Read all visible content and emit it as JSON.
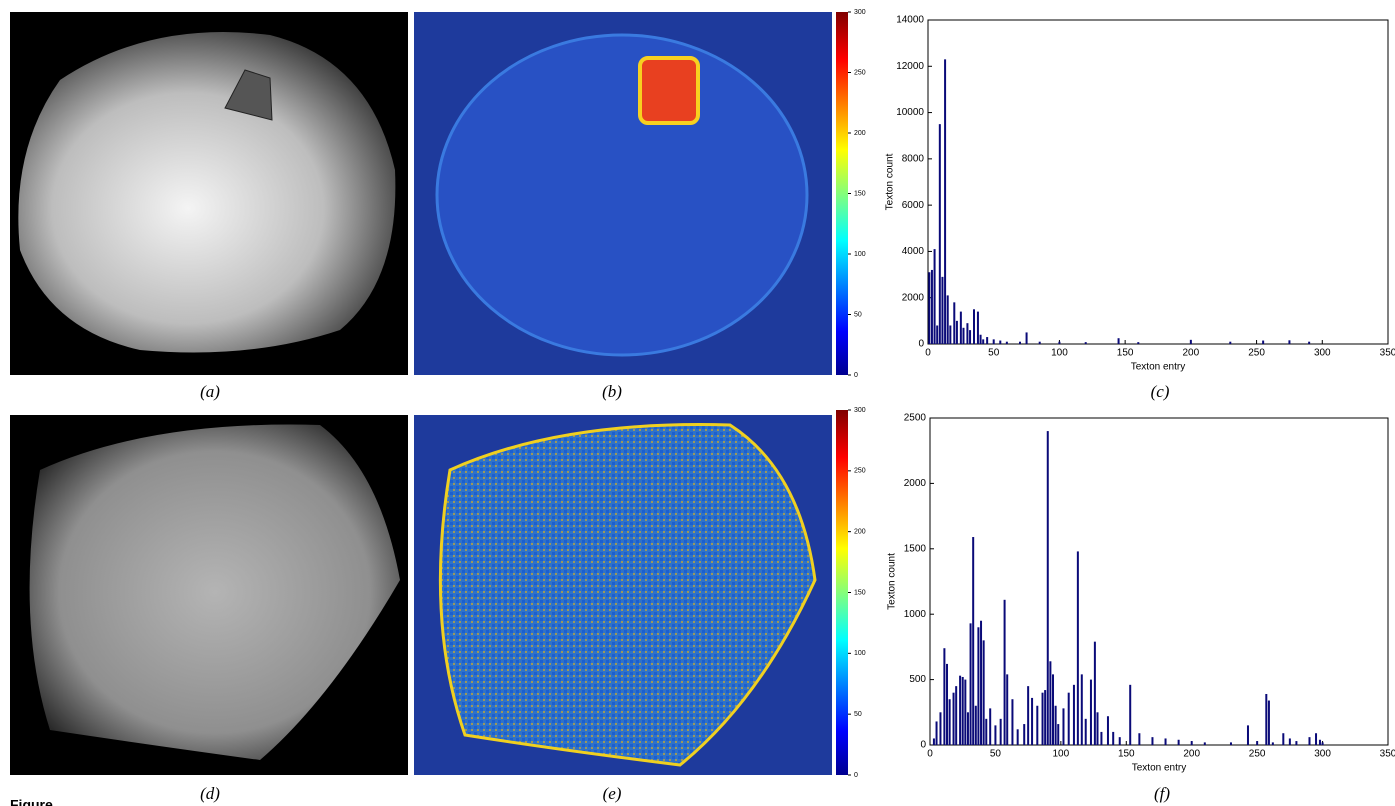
{
  "figure": {
    "captions": [
      "(a)",
      "(b)",
      "(c)",
      "(d)",
      "(e)",
      "(f)"
    ],
    "label": "Figure",
    "colorbar": {
      "lim": [
        0,
        300
      ],
      "ticks": [
        0,
        50,
        100,
        150,
        200,
        250,
        300
      ]
    }
  },
  "chart_data": [
    {
      "type": "bar",
      "x_label": "Texton entry",
      "y_label": "Texton count",
      "color": "#0a0a78",
      "x": [
        1,
        3,
        5,
        7,
        9,
        11,
        13,
        15,
        17,
        20,
        22,
        25,
        27,
        30,
        32,
        35,
        38,
        40,
        42,
        45,
        50,
        55,
        60,
        70,
        75,
        85,
        100,
        120,
        145,
        160,
        200,
        230,
        255,
        275,
        290
      ],
      "values": [
        3100,
        3200,
        4100,
        800,
        9500,
        2900,
        12300,
        2100,
        800,
        1800,
        1000,
        1400,
        700,
        900,
        600,
        1500,
        1400,
        400,
        200,
        300,
        200,
        150,
        100,
        100,
        500,
        100,
        100,
        80,
        250,
        80,
        180,
        100,
        150,
        160,
        100
      ],
      "xlim": [
        0,
        350
      ],
      "xticks": [
        0,
        50,
        100,
        150,
        200,
        250,
        300,
        350
      ],
      "ylim": [
        0,
        14000
      ],
      "yticks": [
        0,
        2000,
        4000,
        6000,
        8000,
        10000,
        12000,
        14000
      ]
    },
    {
      "type": "bar",
      "x_label": "Texton entry",
      "y_label": "Texton count",
      "color": "#0a0a78",
      "x": [
        3,
        5,
        8,
        11,
        13,
        15,
        18,
        20,
        23,
        25,
        27,
        29,
        31,
        33,
        35,
        37,
        39,
        41,
        43,
        46,
        50,
        54,
        57,
        59,
        63,
        67,
        72,
        75,
        78,
        82,
        86,
        88,
        90,
        92,
        94,
        96,
        98,
        102,
        106,
        110,
        113,
        116,
        119,
        123,
        126,
        128,
        131,
        136,
        140,
        145,
        153,
        160,
        170,
        180,
        190,
        200,
        210,
        230,
        243,
        250,
        257,
        259,
        262,
        270,
        275,
        280,
        290,
        295,
        298,
        300
      ],
      "values": [
        50,
        180,
        250,
        740,
        620,
        350,
        400,
        450,
        530,
        520,
        500,
        250,
        930,
        1590,
        300,
        900,
        950,
        800,
        200,
        280,
        150,
        200,
        1110,
        540,
        350,
        120,
        160,
        450,
        360,
        300,
        400,
        420,
        2400,
        640,
        540,
        300,
        160,
        280,
        400,
        460,
        1480,
        540,
        200,
        500,
        790,
        250,
        100,
        220,
        100,
        60,
        460,
        90,
        60,
        50,
        40,
        30,
        20,
        20,
        150,
        30,
        390,
        340,
        20,
        90,
        50,
        30,
        60,
        90,
        40,
        20
      ],
      "xlim": [
        0,
        350
      ],
      "xticks": [
        0,
        50,
        100,
        150,
        200,
        250,
        300,
        350
      ],
      "ylim": [
        0,
        2500
      ],
      "yticks": [
        0,
        500,
        1000,
        1500,
        2000,
        2500
      ]
    }
  ]
}
